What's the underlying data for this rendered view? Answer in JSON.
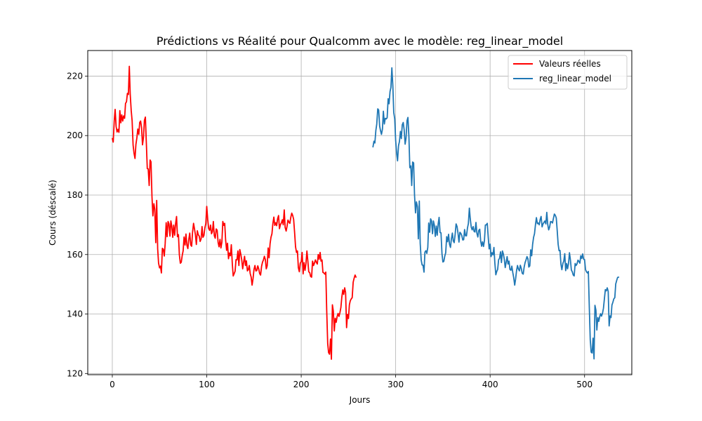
{
  "chart_data": {
    "type": "line",
    "title": "Prédictions vs Réalité pour Qualcomm avec le modèle: reg_linear_model",
    "xlabel": "Jours",
    "ylabel": "Cours (déscalé)",
    "xlim": [
      -26,
      550
    ],
    "ylim": [
      119.6,
      228.6
    ],
    "x_ticks": [
      0,
      100,
      200,
      300,
      400,
      500
    ],
    "y_ticks": [
      120,
      140,
      160,
      180,
      200,
      220
    ],
    "grid": true,
    "legend_position": "top-right",
    "series": [
      {
        "name": "Valeurs réelles",
        "color": "#ff0000",
        "x_start": 0,
        "values": [
          199.0,
          197.8,
          204.8,
          208.8,
          203.1,
          201.2,
          202.1,
          201.1,
          208.4,
          204.3,
          207.0,
          204.9,
          206.6,
          205.8,
          210.8,
          211.4,
          214.2,
          213.8,
          223.3,
          213.9,
          208.4,
          205.0,
          196.8,
          194.1,
          192.3,
          197.0,
          199.3,
          202.2,
          200.4,
          204.4,
          204.9,
          202.6,
          196.9,
          199.4,
          205.1,
          206.2,
          197.9,
          188.9,
          188.8,
          183.2,
          191.8,
          191.2,
          179.4,
          173.0,
          177.1,
          175.2,
          164.0,
          178.2,
          161.9,
          157.1,
          155.5,
          156.1,
          153.8,
          162.1,
          161.8,
          159.5,
          163.7,
          170.7,
          166.0,
          171.1,
          170.3,
          166.2,
          171.3,
          169.5,
          165.8,
          169.9,
          166.5,
          170.3,
          172.8,
          166.0,
          166.7,
          159.9,
          157.1,
          157.4,
          159.6,
          161.3,
          165.9,
          163.2,
          166.9,
          163.1,
          162.0,
          165.2,
          167.2,
          163.2,
          162.8,
          167.5,
          170.5,
          168.7,
          166.6,
          163.4,
          168.0,
          166.7,
          166.2,
          164.4,
          165.3,
          169.4,
          165.8,
          166.4,
          168.9,
          170.4,
          176.2,
          171.8,
          168.8,
          168.1,
          169.9,
          167.0,
          167.7,
          171.1,
          166.3,
          165.5,
          168.6,
          168.2,
          164.1,
          162.6,
          165.1,
          162.2,
          164.2,
          171.1,
          169.8,
          170.5,
          164.9,
          161.4,
          163.8,
          158.6,
          160.5,
          159.6,
          163.3,
          157.0,
          152.8,
          153.6,
          154.4,
          158.3,
          158.2,
          161.2,
          156.3,
          161.7,
          160.1,
          158.3,
          155.2,
          157.4,
          159.4,
          156.3,
          157.9,
          154.5,
          154.9,
          156.3,
          153.6,
          152.4,
          149.7,
          152.0,
          155.0,
          156.3,
          154.5,
          154.6,
          156.2,
          155.2,
          153.6,
          153.1,
          156.0,
          157.4,
          158.2,
          159.4,
          158.3,
          155.2,
          156.2,
          162.2,
          158.9,
          163.6,
          165.8,
          167.0,
          170.4,
          172.6,
          169.8,
          170.7,
          169.7,
          172.0,
          173.1,
          168.7,
          170.1,
          170.6,
          171.7,
          170.0,
          175.0,
          169.1,
          167.9,
          169.5,
          171.6,
          170.9,
          170.5,
          172.6,
          173.9,
          173.1,
          171.8,
          167.3,
          162.6,
          160.7,
          161.2,
          155.6,
          154.2,
          157.1,
          157.6,
          160.7,
          153.5,
          157.3,
          154.7,
          156.9,
          161.2,
          157.9,
          154.2,
          153.9,
          152.6,
          152.4,
          157.8,
          156.3,
          157.1,
          158.2,
          157.4,
          156.8,
          160.0,
          158.4,
          160.7,
          157.8,
          158.2,
          154.0,
          153.8,
          153.4,
          154.1,
          141.2,
          130.1,
          127.0,
          126.5,
          131.6,
          124.8,
          143.1,
          141.0,
          134.3,
          138.6,
          137.2,
          139.1,
          140.2,
          139.2,
          140.4,
          142.2,
          145.6,
          148.1,
          146.6,
          148.8,
          147.2,
          135.4,
          139.9,
          138.5,
          143.1,
          144.5,
          145.1,
          145.5,
          150.7,
          152.0,
          153.1,
          152.4
        ]
      },
      {
        "name": "reg_linear_model",
        "color": "#1f77b4",
        "x_start": 276,
        "values": [
          196.2,
          198.1,
          197.5,
          201.7,
          203.9,
          209.0,
          208.6,
          203.2,
          201.6,
          200.4,
          202.2,
          208.2,
          203.9,
          205.8,
          205.6,
          206.0,
          212.4,
          210.7,
          214.8,
          216.2,
          222.8,
          216.7,
          207.8,
          205.6,
          198.4,
          194.0,
          191.5,
          196.6,
          198.0,
          201.4,
          199.0,
          203.6,
          204.4,
          202.0,
          197.1,
          199.1,
          205.0,
          206.1,
          199.6,
          189.2,
          189.8,
          183.2,
          191.1,
          190.8,
          180.0,
          174.0,
          177.7,
          176.1,
          165.3,
          178.0,
          163.7,
          158.1,
          156.5,
          156.4,
          154.1,
          160.8,
          161.3,
          160.4,
          162.4,
          170.6,
          167.5,
          172.0,
          171.3,
          167.0,
          171.3,
          169.8,
          166.1,
          169.6,
          166.5,
          170.3,
          172.5,
          167.4,
          167.3,
          160.3,
          157.5,
          157.7,
          159.5,
          160.6,
          166.0,
          164.3,
          166.8,
          163.5,
          162.4,
          165.2,
          167.2,
          164.6,
          164.0,
          166.9,
          170.3,
          169.4,
          167.2,
          164.2,
          167.5,
          167.1,
          166.4,
          164.9,
          165.0,
          168.4,
          166.3,
          166.3,
          168.9,
          170.4,
          175.6,
          172.0,
          169.2,
          168.3,
          169.4,
          167.8,
          167.6,
          170.8,
          167.2,
          165.9,
          168.1,
          168.5,
          164.6,
          162.8,
          164.3,
          162.7,
          164.7,
          169.9,
          170.0,
          170.5,
          165.8,
          161.9,
          163.5,
          159.3,
          160.6,
          159.9,
          162.4,
          157.2,
          153.2,
          154.3,
          155.0,
          158.3,
          158.7,
          160.9,
          157.3,
          161.2,
          160.2,
          158.4,
          155.6,
          157.5,
          159.3,
          156.8,
          157.8,
          155.0,
          154.7,
          156.1,
          153.9,
          152.2,
          149.7,
          151.8,
          154.7,
          156.3,
          155.1,
          154.5,
          156.4,
          155.3,
          153.7,
          153.4,
          155.7,
          157.3,
          158.2,
          159.3,
          158.6,
          155.8,
          156.2,
          161.6,
          159.6,
          163.4,
          165.8,
          167.0,
          170.1,
          172.4,
          170.4,
          170.6,
          170.0,
          171.8,
          172.8,
          169.3,
          170.3,
          170.8,
          171.3,
          170.3,
          174.2,
          170.0,
          168.3,
          169.2,
          171.1,
          171.0,
          170.6,
          172.1,
          173.6,
          173.2,
          172.3,
          168.2,
          163.4,
          161.3,
          161.4,
          156.7,
          154.9,
          157.0,
          157.8,
          160.3,
          154.6,
          157.0,
          155.2,
          157.0,
          160.6,
          158.3,
          154.8,
          154.2,
          153.1,
          152.8,
          157.0,
          156.3,
          156.9,
          158.1,
          157.7,
          157.1,
          159.6,
          158.7,
          160.2,
          158.4,
          158.3,
          154.9,
          154.2,
          153.8,
          154.3,
          142.0,
          131.4,
          127.2,
          126.9,
          131.9,
          124.9,
          142.9,
          141.3,
          134.6,
          138.8,
          137.5,
          139.1,
          140.1,
          139.3,
          140.3,
          141.9,
          145.2,
          148.2,
          147.8,
          148.8,
          147.6,
          136.0,
          139.4,
          138.8,
          143.0,
          144.0,
          145.1,
          145.5,
          150.1,
          151.3,
          152.3,
          152.4
        ]
      }
    ]
  }
}
